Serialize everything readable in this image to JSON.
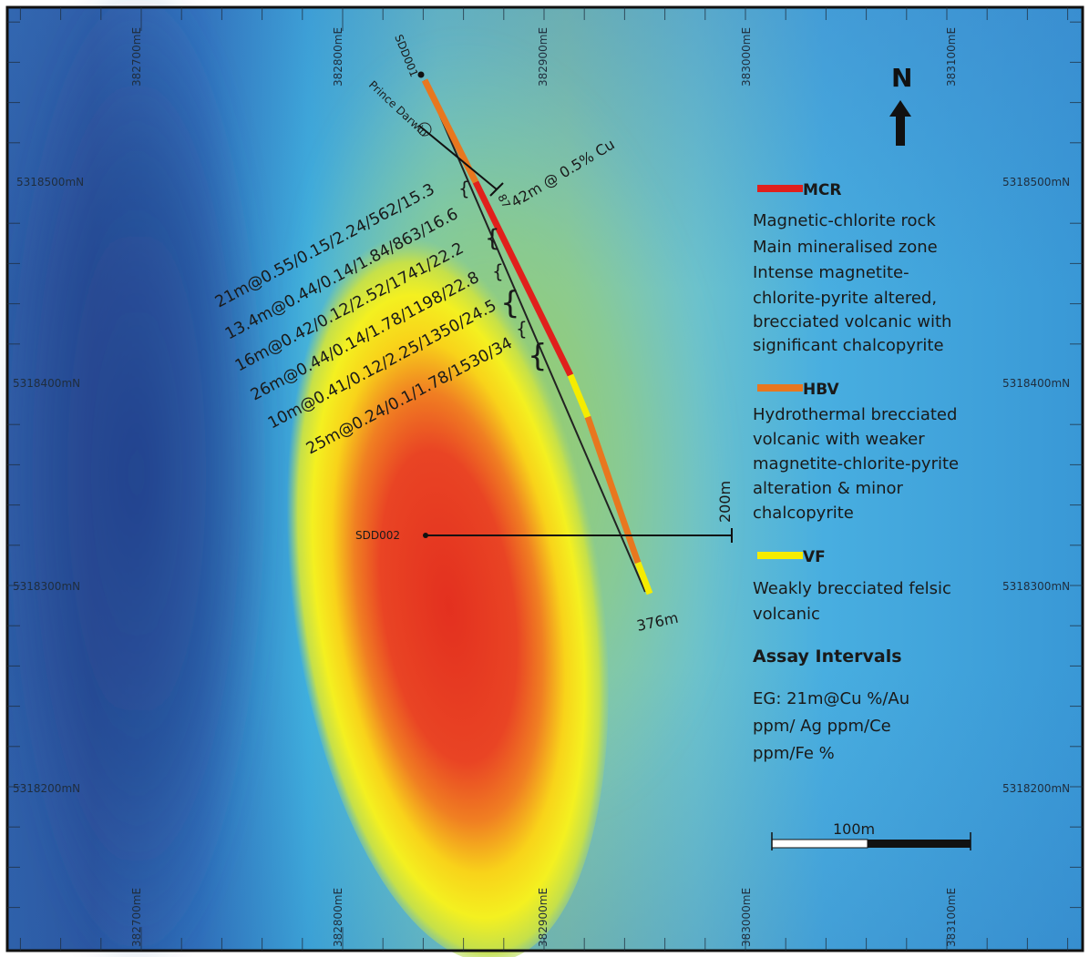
{
  "grid": {
    "easting_labels": [
      "382700mE",
      "382800mE",
      "382900mE",
      "383000mE",
      "383100mE"
    ],
    "northing_labels": [
      "5318500mN",
      "5318400mN",
      "5318300mN",
      "5318200mN"
    ]
  },
  "north_arrow": {
    "label": "N"
  },
  "holes": {
    "sdd001": {
      "name": "SDD001",
      "intercept": "42m @ 0.5% Cu",
      "depth": "376m",
      "angle_label": "87"
    },
    "sdd002": {
      "name": "SDD002",
      "depth": "200m"
    },
    "prospect": {
      "name": "Prince Darwin"
    }
  },
  "assay_labels": [
    "21m@0.55/0.15/2.24/562/15.3",
    "13.4m@0.44/0.14/1.84/863/16.6",
    "16m@0.42/0.12/2.52/1741/22.2",
    "26m@0.44/0.14/1.78/1198/22.8",
    "10m@0.41/0.12/2.25/1350/24.5",
    "25m@0.24/0.1/1.78/1530/34"
  ],
  "legend": {
    "mcr": {
      "code": "MCR",
      "color": "#e0201c",
      "lines": [
        "Magnetic-chlorite rock",
        "Main mineralised zone",
        "Intense magnetite-",
        "chlorite-pyrite altered,",
        "brecciated volcanic with",
        "significant chalcopyrite"
      ]
    },
    "hbv": {
      "code": "HBV",
      "color": "#e8771f",
      "lines": [
        "Hydrothermal brecciated",
        "volcanic with weaker",
        "magnetite-chlorite-pyrite",
        "alteration & minor",
        "chalcopyrite"
      ]
    },
    "vf": {
      "code": "VF",
      "color": "#f5ec00",
      "lines": [
        "Weakly brecciated felsic",
        "volcanic"
      ]
    },
    "assay": {
      "title": "Assay Intervals",
      "lines": [
        "EG: 21m@Cu %/Au",
        "ppm/ Ag ppm/Ce",
        "ppm/Fe %"
      ]
    }
  },
  "scale_bar": {
    "label": "100m"
  }
}
